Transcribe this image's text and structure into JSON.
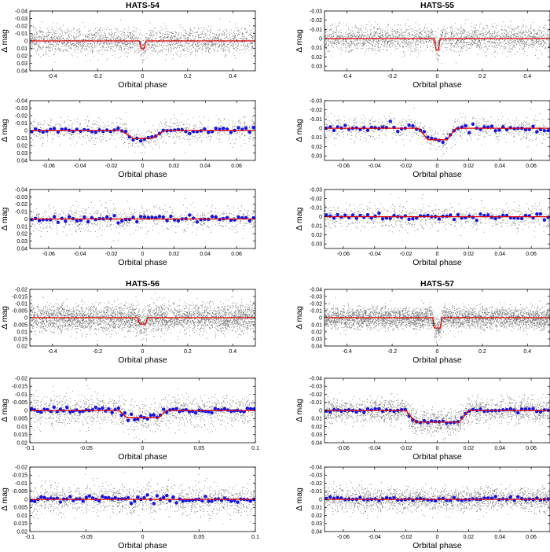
{
  "figure": {
    "colors": {
      "points": "#777777",
      "binned": "#1515e6",
      "model": "#e00000",
      "frame": "#000000"
    }
  },
  "chart_data": [
    {
      "id": "p1",
      "type": "scatter",
      "title": "HATS-54",
      "xlabel": "Orbital phase",
      "ylabel": "Δ mag",
      "xlim": [
        -0.5,
        0.5
      ],
      "ylim": [
        -0.04,
        0.04
      ],
      "y_inverted": true,
      "xticks": [
        -0.4,
        -0.2,
        0,
        0.2,
        0.4
      ],
      "xtick_labels": [
        "-0.4",
        "-0.2",
        "0",
        "0.2",
        "0.4"
      ],
      "yticks": [
        -0.04,
        -0.03,
        -0.02,
        -0.01,
        0,
        0.01,
        0.02,
        0.03,
        0.04
      ],
      "ytick_labels": [
        "-0.04",
        "-0.03",
        "-0.02",
        "-0.01",
        "0",
        "0.01",
        "0.02",
        "0.03",
        "0.04"
      ],
      "scatter_sigma": 0.0085,
      "n_points": 2400,
      "transit": {
        "depth": 0.0105,
        "t14": 0.028,
        "tin": 0.008
      }
    },
    {
      "id": "p2",
      "type": "scatter",
      "title": "HATS-55",
      "xlabel": "Orbital phase",
      "ylabel": "Δ mag",
      "xlim": [
        -0.5,
        0.5
      ],
      "ylim": [
        -0.03,
        0.035
      ],
      "y_inverted": true,
      "xticks": [
        -0.4,
        -0.2,
        0,
        0.2,
        0.4
      ],
      "xtick_labels": [
        "-0.4",
        "-0.2",
        "0",
        "0.2",
        "0.4"
      ],
      "yticks": [
        -0.03,
        -0.02,
        -0.01,
        0,
        0.01,
        0.02,
        0.03
      ],
      "ytick_labels": [
        "-0.03",
        "-0.02",
        "-0.01",
        "0",
        "0.01",
        "0.02",
        "0.03"
      ],
      "scatter_sigma": 0.007,
      "n_points": 2400,
      "transit": {
        "depth": 0.0125,
        "t14": 0.024,
        "tin": 0.006
      }
    },
    {
      "id": "p3",
      "type": "scatter",
      "title": "",
      "xlabel": "Orbital phase",
      "ylabel": "Δ mag",
      "xlim": [
        -0.072,
        0.072
      ],
      "ylim": [
        -0.04,
        0.04
      ],
      "y_inverted": true,
      "xticks": [
        -0.06,
        -0.04,
        -0.02,
        0,
        0.02,
        0.04,
        0.06
      ],
      "xtick_labels": [
        "-0.06",
        "-0.04",
        "-0.02",
        "0",
        "0.02",
        "0.04",
        "0.06"
      ],
      "yticks": [
        -0.04,
        -0.03,
        -0.02,
        -0.01,
        0,
        0.01,
        0.02,
        0.03,
        0.04
      ],
      "ytick_labels": [
        "-0.04",
        "-0.03",
        "-0.02",
        "-0.01",
        "0",
        "0.01",
        "0.02",
        "0.03",
        "0.04"
      ],
      "scatter_sigma": 0.0085,
      "n_points": 900,
      "transit": {
        "depth": 0.0105,
        "t14": 0.028,
        "tin": 0.008
      },
      "bins": 60
    },
    {
      "id": "p4",
      "type": "scatter",
      "title": "",
      "xlabel": "Orbital phase",
      "ylabel": "Δ mag",
      "xlim": [
        -0.072,
        0.072
      ],
      "ylim": [
        -0.03,
        0.035
      ],
      "y_inverted": true,
      "xticks": [
        -0.06,
        -0.04,
        -0.02,
        0,
        0.02,
        0.04,
        0.06
      ],
      "xtick_labels": [
        "-0.06",
        "-0.04",
        "-0.02",
        "0",
        "0.02",
        "0.04",
        "0.06"
      ],
      "yticks": [
        -0.03,
        -0.02,
        -0.01,
        0,
        0.01,
        0.02,
        0.03
      ],
      "ytick_labels": [
        "-0.03",
        "-0.02",
        "-0.01",
        "0",
        "0.01",
        "0.02",
        "0.03"
      ],
      "scatter_sigma": 0.007,
      "n_points": 900,
      "transit": {
        "depth": 0.0125,
        "t14": 0.024,
        "tin": 0.006
      },
      "bins": 60
    },
    {
      "id": "p5",
      "type": "scatter",
      "title": "",
      "xlabel": "Orbital phase",
      "ylabel": "Δ mag",
      "xlim": [
        -0.072,
        0.072
      ],
      "ylim": [
        -0.04,
        0.04
      ],
      "y_inverted": true,
      "xticks": [
        -0.06,
        -0.04,
        -0.02,
        0,
        0.02,
        0.04,
        0.06
      ],
      "xtick_labels": [
        "-0.06",
        "-0.04",
        "-0.02",
        "0",
        "0.02",
        "0.04",
        "0.06"
      ],
      "yticks": [
        -0.04,
        -0.03,
        -0.02,
        -0.01,
        0,
        0.01,
        0.02,
        0.03,
        0.04
      ],
      "ytick_labels": [
        "-0.04",
        "-0.03",
        "-0.02",
        "-0.01",
        "0",
        "0.01",
        "0.02",
        "0.03",
        "0.04"
      ],
      "scatter_sigma": 0.0085,
      "n_points": 900,
      "transit": {
        "depth": 0,
        "t14": 0.028,
        "tin": 0.008
      },
      "bins": 60
    },
    {
      "id": "p6",
      "type": "scatter",
      "title": "",
      "xlabel": "Orbital phase",
      "ylabel": "Δ mag",
      "xlim": [
        -0.072,
        0.072
      ],
      "ylim": [
        -0.03,
        0.035
      ],
      "y_inverted": true,
      "xticks": [
        -0.06,
        -0.04,
        -0.02,
        0,
        0.02,
        0.04,
        0.06
      ],
      "xtick_labels": [
        "-0.06",
        "-0.04",
        "-0.02",
        "0",
        "0.02",
        "0.04",
        "0.06"
      ],
      "yticks": [
        -0.03,
        -0.02,
        -0.01,
        0,
        0.01,
        0.02,
        0.03
      ],
      "ytick_labels": [
        "-0.03",
        "-0.02",
        "-0.01",
        "0",
        "0.01",
        "0.02",
        "0.03"
      ],
      "scatter_sigma": 0.007,
      "n_points": 900,
      "transit": {
        "depth": 0,
        "t14": 0.024,
        "tin": 0.006
      },
      "bins": 60
    },
    {
      "id": "p7",
      "type": "scatter",
      "title": "HATS-56",
      "xlabel": "Orbital phase",
      "ylabel": "Δ mag",
      "xlim": [
        -0.5,
        0.5
      ],
      "ylim": [
        -0.02,
        0.02
      ],
      "y_inverted": true,
      "xticks": [
        -0.4,
        -0.2,
        0,
        0.2,
        0.4
      ],
      "xtick_labels": [
        "-0.4",
        "-0.2",
        "0",
        "0.2",
        "0.4"
      ],
      "yticks": [
        -0.02,
        -0.015,
        -0.01,
        -0.005,
        0,
        0.005,
        0.01,
        0.015,
        0.02
      ],
      "ytick_labels": [
        "-0.02",
        "-0.015",
        "-0.01",
        "-0.005",
        "0",
        "0.005",
        "0.01",
        "0.015",
        "0.02"
      ],
      "scatter_sigma": 0.0048,
      "n_points": 3800,
      "transit": {
        "depth": 0.0045,
        "t14": 0.042,
        "tin": 0.007
      }
    },
    {
      "id": "p8",
      "type": "scatter",
      "title": "HATS-57",
      "xlabel": "Orbital phase",
      "ylabel": "Δ mag",
      "xlim": [
        -0.5,
        0.5
      ],
      "ylim": [
        -0.04,
        0.04
      ],
      "y_inverted": true,
      "xticks": [
        -0.4,
        -0.2,
        0,
        0.2,
        0.4
      ],
      "xtick_labels": [
        "-0.4",
        "-0.2",
        "0",
        "0.2",
        "0.4"
      ],
      "yticks": [
        -0.04,
        -0.03,
        -0.02,
        -0.01,
        0,
        0.01,
        0.02,
        0.03,
        0.04
      ],
      "ytick_labels": [
        "-0.04",
        "-0.03",
        "-0.02",
        "-0.01",
        "0",
        "0.01",
        "0.02",
        "0.03",
        "0.04"
      ],
      "scatter_sigma": 0.0075,
      "n_points": 4000,
      "transit": {
        "depth": 0.0145,
        "t14": 0.04,
        "tin": 0.006
      }
    },
    {
      "id": "p9",
      "type": "scatter",
      "title": "",
      "xlabel": "Orbital phase",
      "ylabel": "Δ mag",
      "xlim": [
        -0.1,
        0.1
      ],
      "ylim": [
        -0.02,
        0.02
      ],
      "y_inverted": true,
      "xticks": [
        -0.1,
        -0.05,
        0,
        0.05,
        0.1
      ],
      "xtick_labels": [
        "-0.1",
        "-0.05",
        "0",
        "0.05",
        "0.1"
      ],
      "yticks": [
        -0.02,
        -0.015,
        -0.01,
        -0.005,
        0,
        0.005,
        0.01,
        0.015,
        0.02
      ],
      "ytick_labels": [
        "-0.02",
        "-0.015",
        "-0.01",
        "-0.005",
        "0",
        "0.005",
        "0.01",
        "0.015",
        "0.02"
      ],
      "scatter_sigma": 0.0048,
      "n_points": 1500,
      "transit": {
        "depth": 0.0045,
        "t14": 0.042,
        "tin": 0.007
      },
      "bins": 70
    },
    {
      "id": "p10",
      "type": "scatter",
      "title": "",
      "xlabel": "Orbital phase",
      "ylabel": "Δ mag",
      "xlim": [
        -0.072,
        0.072
      ],
      "ylim": [
        -0.04,
        0.04
      ],
      "y_inverted": true,
      "xticks": [
        -0.06,
        -0.04,
        -0.02,
        0,
        0.02,
        0.04,
        0.06
      ],
      "xtick_labels": [
        "-0.06",
        "-0.04",
        "-0.02",
        "0",
        "0.02",
        "0.04",
        "0.06"
      ],
      "yticks": [
        -0.04,
        -0.03,
        -0.02,
        -0.01,
        0,
        0.01,
        0.02,
        0.03,
        0.04
      ],
      "ytick_labels": [
        "-0.04",
        "-0.03",
        "-0.02",
        "-0.01",
        "0",
        "0.01",
        "0.02",
        "0.03",
        "0.04"
      ],
      "scatter_sigma": 0.0075,
      "n_points": 2200,
      "transit": {
        "depth": 0.0145,
        "t14": 0.04,
        "tin": 0.006
      },
      "bins": 60
    },
    {
      "id": "p11",
      "type": "scatter",
      "title": "",
      "xlabel": "Orbital phase",
      "ylabel": "Δ mag",
      "xlim": [
        -0.1,
        0.1
      ],
      "ylim": [
        -0.02,
        0.02
      ],
      "y_inverted": true,
      "xticks": [
        -0.1,
        -0.05,
        0,
        0.05,
        0.1
      ],
      "xtick_labels": [
        "-0.1",
        "-0.05",
        "0",
        "0.05",
        "0.1"
      ],
      "yticks": [
        -0.02,
        -0.015,
        -0.01,
        -0.005,
        0,
        0.005,
        0.01,
        0.015,
        0.02
      ],
      "ytick_labels": [
        "-0.02",
        "-0.015",
        "-0.01",
        "-0.005",
        "0",
        "0.005",
        "0.01",
        "0.015",
        "0.02"
      ],
      "scatter_sigma": 0.0048,
      "n_points": 1500,
      "transit": {
        "depth": 0,
        "t14": 0.042,
        "tin": 0.007
      },
      "bins": 70
    },
    {
      "id": "p12",
      "type": "scatter",
      "title": "",
      "xlabel": "Orbital phase",
      "ylabel": "Δ mag",
      "xlim": [
        -0.072,
        0.072
      ],
      "ylim": [
        -0.04,
        0.04
      ],
      "y_inverted": true,
      "xticks": [
        -0.06,
        -0.04,
        -0.02,
        0,
        0.02,
        0.04,
        0.06
      ],
      "xtick_labels": [
        "-0.06",
        "-0.04",
        "-0.02",
        "0",
        "0.02",
        "0.04",
        "0.06"
      ],
      "yticks": [
        -0.04,
        -0.03,
        -0.02,
        -0.01,
        0,
        0.01,
        0.02,
        0.03,
        0.04
      ],
      "ytick_labels": [
        "-0.04",
        "-0.03",
        "-0.02",
        "-0.01",
        "0",
        "0.01",
        "0.02",
        "0.03",
        "0.04"
      ],
      "scatter_sigma": 0.0075,
      "n_points": 2200,
      "transit": {
        "depth": 0,
        "t14": 0.04,
        "tin": 0.006
      },
      "bins": 60
    }
  ]
}
